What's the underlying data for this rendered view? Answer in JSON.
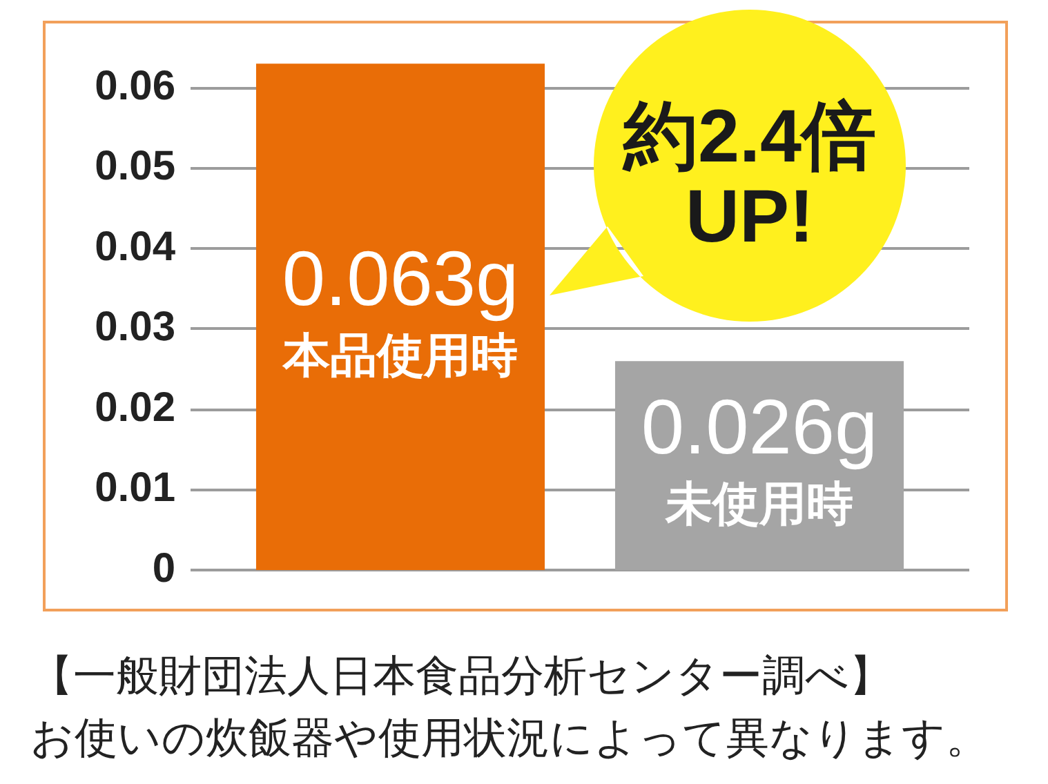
{
  "chart_data": {
    "type": "bar",
    "categories": [
      "本品使用時",
      "未使用時"
    ],
    "values": [
      0.063,
      0.026
    ],
    "colors": [
      "#e96d07",
      "#a5a5a5"
    ],
    "value_labels": [
      "0.063g",
      "0.026g"
    ],
    "ylim": [
      0,
      0.068
    ],
    "yticks": [
      0,
      0.01,
      0.02,
      0.03,
      0.04,
      0.05,
      0.06
    ],
    "grid": "y",
    "tick_labels": "y",
    "annotations": [
      "約2.4倍 UP!",
      "【一般財団法人日本食品分析センター調べ】",
      "お使いの炊飯器や使用状況によって異なります。"
    ]
  }
}
